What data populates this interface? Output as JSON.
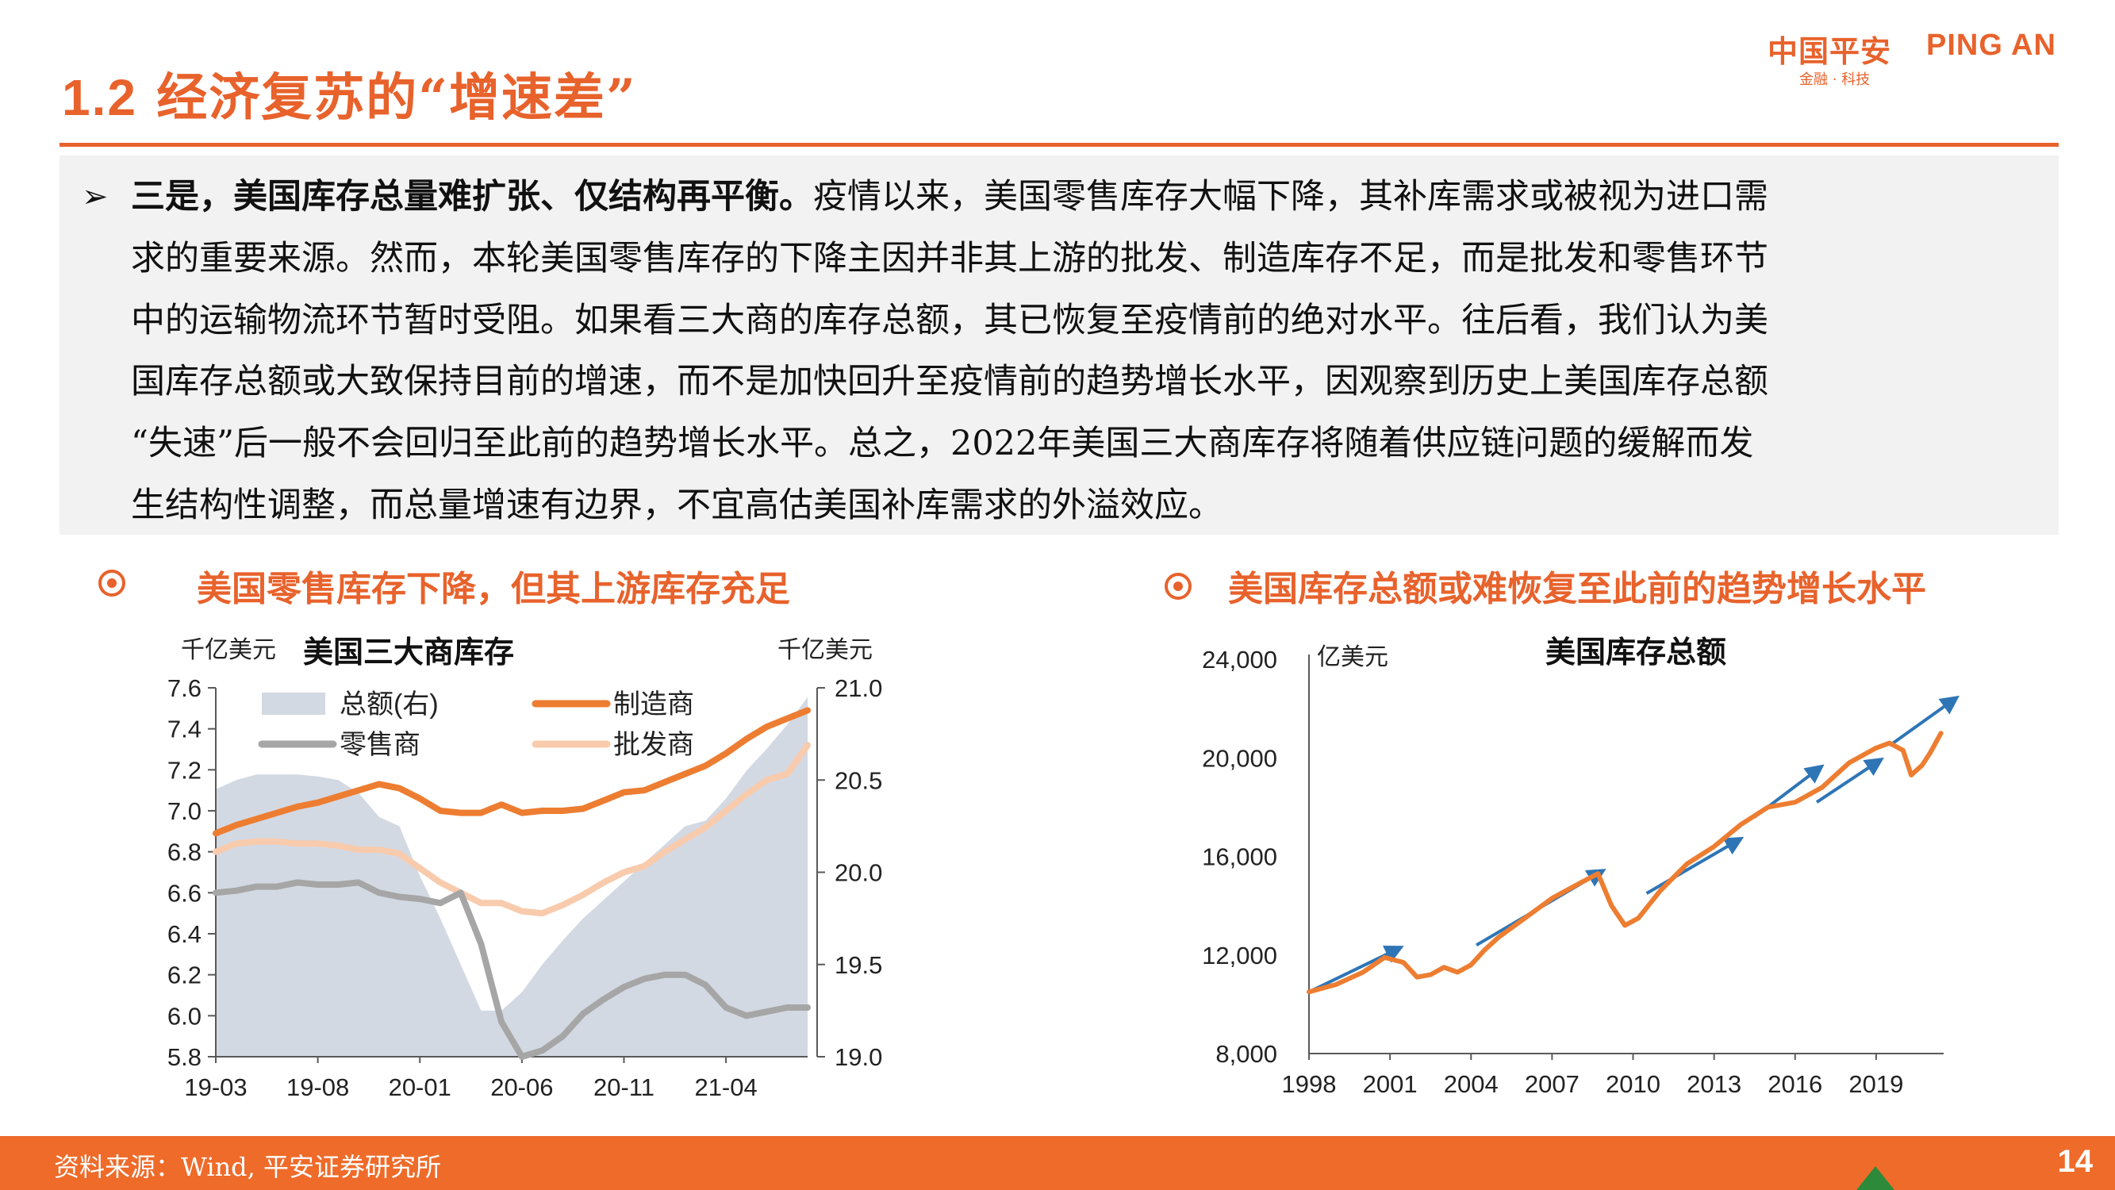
{
  "header": {
    "title_num": "1.2",
    "title_text": "经济复苏的“增速差”",
    "logo_cn": "中国平安",
    "logo_en": "PING AN",
    "logo_sub": "金融 · 科技"
  },
  "body": {
    "lead": "三是，美国库存总量难扩张、仅结构再平衡。",
    "line1_rest": "疫情以来，美国零售库存大幅下降，其补库需求或被视为进口需",
    "line2": "求的重要来源。然而，本轮美国零售库存的下降主因并非其上游的批发、制造库存不足，而是批发和零售环节",
    "line3": "中的运输物流环节暂时受阻。如果看三大商的库存总额，其已恢复至疫情前的绝对水平。往后看，我们认为美",
    "line4": "国库存总额或大致保持目前的增速，而不是加快回升至疫情前的趋势增长水平，因观察到历史上美国库存总额",
    "line5": "“失速”后一般不会回归至此前的趋势增长水平。总之，2022年美国三大商库存将随着供应链问题的缓解而发",
    "line6": "生结构性调整，而总量增速有边界，不宜高估美国补库需求的外溢效应。"
  },
  "left_section_title": "美国零售库存下降，但其上游库存充足",
  "right_section_title": "美国库存总额或难恢复至此前的趋势增长水平",
  "chart_data": [
    {
      "type": "line",
      "title": "美国三大商库存",
      "ylabel_left": "千亿美元",
      "ylabel_right": "千亿美元",
      "ylim_left": [
        5.8,
        7.6
      ],
      "ylim_right": [
        19.0,
        21.0
      ],
      "yticks_left": [
        "7.6",
        "7.4",
        "7.2",
        "7.0",
        "6.8",
        "6.6",
        "6.4",
        "6.2",
        "6.0",
        "5.8"
      ],
      "yticks_right": [
        "21.0",
        "20.5",
        "20.0",
        "19.5",
        "19.0"
      ],
      "x": [
        "19-03",
        "19-04",
        "19-05",
        "19-06",
        "19-07",
        "19-08",
        "19-09",
        "19-10",
        "19-11",
        "19-12",
        "20-01",
        "20-02",
        "20-03",
        "20-04",
        "20-05",
        "20-06",
        "20-07",
        "20-08",
        "20-09",
        "20-10",
        "20-11",
        "20-12",
        "21-01",
        "21-02",
        "21-03",
        "21-04",
        "21-05",
        "21-06",
        "21-07",
        "21-08"
      ],
      "xtick_labels": [
        "19-03",
        "19-08",
        "20-01",
        "20-06",
        "20-11",
        "21-04"
      ],
      "legend": "top-left",
      "series": [
        {
          "name": "总额(右)",
          "type": "area",
          "axis": "right",
          "color": "#d3d9e3",
          "values": [
            20.45,
            20.5,
            20.53,
            20.53,
            20.53,
            20.52,
            20.5,
            20.43,
            20.3,
            20.25,
            19.98,
            19.75,
            19.5,
            19.25,
            19.25,
            19.35,
            19.5,
            19.63,
            19.75,
            19.85,
            19.95,
            20.05,
            20.15,
            20.25,
            20.28,
            20.4,
            20.55,
            20.67,
            20.8,
            20.95
          ]
        },
        {
          "name": "制造商",
          "type": "line",
          "axis": "left",
          "color": "#ed7d31",
          "values": [
            6.89,
            6.93,
            6.96,
            6.99,
            7.02,
            7.04,
            7.07,
            7.1,
            7.13,
            7.11,
            7.06,
            7.0,
            6.99,
            6.99,
            7.03,
            6.99,
            7.0,
            7.0,
            7.01,
            7.05,
            7.09,
            7.1,
            7.14,
            7.18,
            7.22,
            7.28,
            7.35,
            7.41,
            7.45,
            7.49
          ]
        },
        {
          "name": "零售商",
          "type": "line",
          "axis": "left",
          "color": "#a6a6a6",
          "values": [
            6.6,
            6.61,
            6.63,
            6.63,
            6.65,
            6.64,
            6.64,
            6.65,
            6.6,
            6.58,
            6.57,
            6.55,
            6.6,
            6.35,
            5.97,
            5.8,
            5.83,
            5.9,
            6.01,
            6.08,
            6.14,
            6.18,
            6.2,
            6.2,
            6.15,
            6.04,
            6.0,
            6.02,
            6.04,
            6.04
          ]
        },
        {
          "name": "批发商",
          "type": "line",
          "axis": "left",
          "color": "#f8cbad",
          "values": [
            6.8,
            6.84,
            6.85,
            6.85,
            6.84,
            6.84,
            6.83,
            6.81,
            6.81,
            6.79,
            6.72,
            6.65,
            6.6,
            6.55,
            6.55,
            6.51,
            6.5,
            6.54,
            6.59,
            6.65,
            6.7,
            6.73,
            6.8,
            6.86,
            6.92,
            7.0,
            7.08,
            7.15,
            7.18,
            7.32
          ]
        }
      ]
    },
    {
      "type": "line",
      "title": "美国库存总额",
      "ylabel": "亿美元",
      "ylim": [
        8000,
        24000
      ],
      "yticks": [
        "24,000",
        "20,000",
        "16,000",
        "12,000",
        "8,000"
      ],
      "xlim": [
        1998,
        2021.5
      ],
      "xtick_labels": [
        "1998",
        "2001",
        "2004",
        "2007",
        "2010",
        "2013",
        "2016",
        "2019"
      ],
      "series": [
        {
          "name": "库存总额",
          "color": "#ed7d31",
          "x": [
            1998,
            1999,
            2000,
            2000.8,
            2001.5,
            2002,
            2002.5,
            2003,
            2003.5,
            2004,
            2004.5,
            2005,
            2006,
            2007,
            2008,
            2008.7,
            2009.2,
            2009.7,
            2010.2,
            2011,
            2012,
            2013,
            2014,
            2015,
            2016,
            2017,
            2018,
            2019,
            2019.5,
            2020,
            2020.3,
            2020.7,
            2021,
            2021.4
          ],
          "values": [
            10500,
            10800,
            11300,
            11900,
            11700,
            11100,
            11200,
            11500,
            11300,
            11600,
            12200,
            12700,
            13500,
            14300,
            14900,
            15300,
            14000,
            13200,
            13500,
            14600,
            15700,
            16400,
            17300,
            18000,
            18200,
            18800,
            19800,
            20400,
            20600,
            20300,
            19300,
            19700,
            20200,
            21000
          ]
        },
        {
          "name": "trend-1",
          "color": "#2e75b6",
          "x": [
            1998,
            2001.2
          ],
          "values": [
            10500,
            12200
          ]
        },
        {
          "name": "trend-2",
          "color": "#2e75b6",
          "x": [
            2004.2,
            2008.7
          ],
          "values": [
            12400,
            15300
          ]
        },
        {
          "name": "trend-3",
          "color": "#2e75b6",
          "x": [
            2010.5,
            2013.8
          ],
          "values": [
            14500,
            16600
          ]
        },
        {
          "name": "trend-4",
          "color": "#2e75b6",
          "x": [
            2014.5,
            2016.8
          ],
          "values": [
            17600,
            19500
          ]
        },
        {
          "name": "trend-5",
          "color": "#2e75b6",
          "x": [
            2016.8,
            2019
          ],
          "values": [
            18200,
            19800
          ]
        },
        {
          "name": "trend-6",
          "color": "#2e75b6",
          "x": [
            2019.5,
            2021.8
          ],
          "values": [
            20500,
            22300
          ]
        }
      ]
    }
  ],
  "footer": {
    "source": "资料来源：Wind, 平安证券研究所",
    "page": "14"
  }
}
